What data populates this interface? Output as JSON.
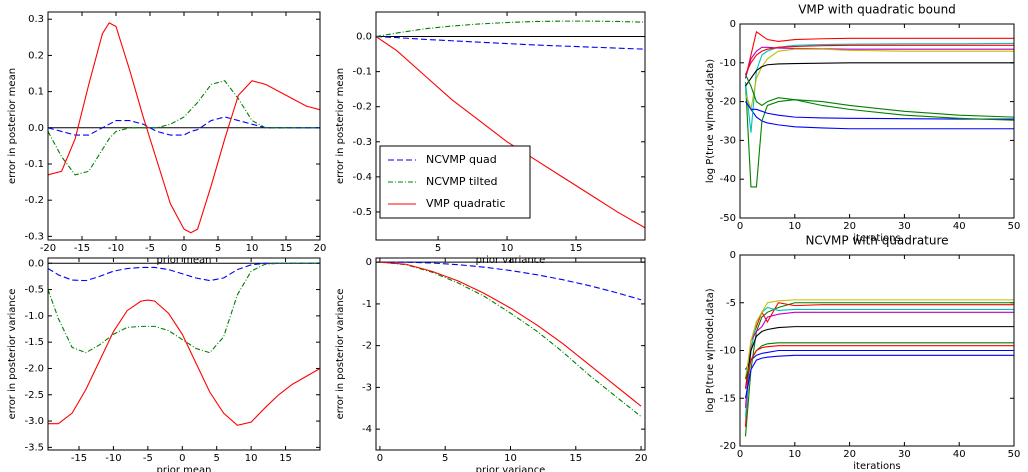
{
  "chart_data": [
    {
      "type": "line",
      "xlabel": "prior mean",
      "ylabel": "error in posterior mean",
      "x": [
        -20,
        -18,
        -16,
        -14,
        -12,
        -11,
        -10,
        -8,
        -6,
        -4,
        -2,
        0,
        1,
        2,
        4,
        6,
        8,
        10,
        12,
        14,
        16,
        18,
        20
      ],
      "series": [
        {
          "name": "NCVMP quad",
          "color": "#0000ff",
          "dash": "dashed",
          "values": [
            0,
            -0.01,
            -0.02,
            -0.02,
            0,
            0.01,
            0.02,
            0.02,
            0.01,
            -0.01,
            -0.02,
            -0.02,
            -0.01,
            -0.005,
            0.02,
            0.03,
            0.02,
            0.01,
            0,
            0,
            0,
            0,
            0
          ]
        },
        {
          "name": "NCVMP tilted",
          "color": "#008000",
          "dash": "dashdot",
          "values": [
            -0.01,
            -0.08,
            -0.13,
            -0.12,
            -0.06,
            -0.03,
            -0.01,
            0,
            0,
            0,
            0.01,
            0.03,
            0.05,
            0.07,
            0.12,
            0.13,
            0.08,
            0.02,
            0,
            0,
            0,
            0,
            0
          ]
        },
        {
          "name": "VMP quadratic",
          "color": "#ff0000",
          "dash": "solid",
          "values": [
            -0.13,
            -0.12,
            -0.03,
            0.12,
            0.26,
            0.29,
            0.28,
            0.16,
            0.03,
            -0.09,
            -0.21,
            -0.28,
            -0.29,
            -0.28,
            -0.16,
            -0.03,
            0.09,
            0.13,
            0.12,
            0.1,
            0.08,
            0.06,
            0.05
          ]
        }
      ],
      "xlim": [
        -20,
        20
      ],
      "ylim": [
        -0.31,
        0.32
      ],
      "xticks": [
        -20,
        -15,
        -10,
        -5,
        0,
        5,
        10,
        15,
        20
      ],
      "yticks": [
        -0.3,
        -0.2,
        -0.1,
        {
          "value": 0,
          "label": "0.0"
        },
        0.1,
        0.2,
        0.3
      ],
      "hline": 0
    },
    {
      "type": "line",
      "xlabel": "prior variance",
      "ylabel": "error in posterior mean",
      "x": [
        0.5,
        2,
        4,
        6,
        8,
        10,
        12,
        14,
        16,
        18,
        20
      ],
      "series": [
        {
          "name": "NCVMP quad",
          "color": "#0000ff",
          "dash": "dashed",
          "values": [
            0,
            -0.003,
            -0.008,
            -0.012,
            -0.016,
            -0.02,
            -0.024,
            -0.027,
            -0.03,
            -0.033,
            -0.036
          ]
        },
        {
          "name": "NCVMP tilted",
          "color": "#008000",
          "dash": "dashdot",
          "values": [
            0,
            0.01,
            0.022,
            0.03,
            0.036,
            0.04,
            0.043,
            0.044,
            0.044,
            0.043,
            0.041
          ]
        },
        {
          "name": "VMP quadratic",
          "color": "#ff0000",
          "dash": "solid",
          "values": [
            0,
            -0.04,
            -0.11,
            -0.18,
            -0.24,
            -0.3,
            -0.35,
            -0.4,
            -0.45,
            -0.5,
            -0.545
          ]
        }
      ],
      "xlim": [
        0.5,
        20
      ],
      "ylim": [
        -0.58,
        0.07
      ],
      "xticks": [
        5,
        10,
        15
      ],
      "yticks": [
        -0.5,
        -0.4,
        -0.3,
        -0.2,
        -0.1,
        {
          "value": 0,
          "label": "0.0"
        }
      ],
      "hline": 0,
      "legend": "center left"
    },
    {
      "type": "line",
      "xlabel": "prior mean",
      "ylabel": "error in posterior variance",
      "x": [
        -19.5,
        -18,
        -16,
        -14,
        -12,
        -10,
        -8,
        -6,
        -5,
        -4,
        -2,
        0,
        2,
        4,
        6,
        8,
        10,
        12,
        14,
        16,
        18,
        20
      ],
      "series": [
        {
          "name": "NCVMP quad",
          "color": "#0000ff",
          "dash": "dashed",
          "values": [
            -0.1,
            -0.22,
            -0.32,
            -0.33,
            -0.25,
            -0.15,
            -0.1,
            -0.08,
            -0.08,
            -0.08,
            -0.12,
            -0.2,
            -0.28,
            -0.33,
            -0.28,
            -0.12,
            -0.03,
            0,
            0,
            0,
            0,
            0
          ]
        },
        {
          "name": "NCVMP tilted",
          "color": "#008000",
          "dash": "dashdot",
          "values": [
            -0.5,
            -1.05,
            -1.6,
            -1.7,
            -1.55,
            -1.35,
            -1.22,
            -1.2,
            -1.2,
            -1.2,
            -1.28,
            -1.45,
            -1.62,
            -1.7,
            -1.4,
            -0.6,
            -0.15,
            -0.02,
            0,
            0,
            0,
            0
          ]
        },
        {
          "name": "VMP quadratic",
          "color": "#ff0000",
          "dash": "solid",
          "values": [
            -3.05,
            -3.05,
            -2.85,
            -2.4,
            -1.85,
            -1.3,
            -0.9,
            -0.72,
            -0.7,
            -0.72,
            -0.95,
            -1.35,
            -1.9,
            -2.45,
            -2.85,
            -3.08,
            -3.02,
            -2.75,
            -2.5,
            -2.3,
            -2.15,
            -2
          ]
        }
      ],
      "xlim": [
        -19.5,
        20
      ],
      "ylim": [
        -3.55,
        0.1
      ],
      "xticks": [
        -15,
        -10,
        -5,
        0,
        5,
        10,
        15
      ],
      "yticks": [
        -3.5,
        {
          "value": -3,
          "label": "-3.0"
        },
        -2.5,
        {
          "value": -2,
          "label": "-2.0"
        },
        -1.5,
        {
          "value": -1,
          "label": "-1.0"
        },
        -0.5,
        {
          "value": 0,
          "label": "0.0"
        }
      ],
      "hline": 0
    },
    {
      "type": "line",
      "xlabel": "prior variance",
      "ylabel": "error in posterior variance",
      "x": [
        0,
        2,
        4,
        6,
        8,
        10,
        12,
        14,
        16,
        18,
        20
      ],
      "series": [
        {
          "name": "NCVMP quad",
          "color": "#0000ff",
          "dash": "dashed",
          "values": [
            0,
            0,
            -0.02,
            -0.06,
            -0.12,
            -0.2,
            -0.3,
            -0.42,
            -0.56,
            -0.72,
            -0.9
          ]
        },
        {
          "name": "NCVMP tilted",
          "color": "#008000",
          "dash": "dashdot",
          "values": [
            0,
            -0.06,
            -0.24,
            -0.5,
            -0.82,
            -1.22,
            -1.65,
            -2.15,
            -2.7,
            -3.2,
            -3.7
          ]
        },
        {
          "name": "VMP quadratic",
          "color": "#ff0000",
          "dash": "solid",
          "values": [
            0,
            -0.05,
            -0.22,
            -0.45,
            -0.75,
            -1.1,
            -1.5,
            -1.95,
            -2.45,
            -2.95,
            -3.45
          ]
        }
      ],
      "xlim": [
        -0.3,
        20.3
      ],
      "ylim": [
        -4.5,
        0.1
      ],
      "xticks": [
        0,
        5,
        10,
        15,
        20
      ],
      "yticks": [
        -4,
        -3,
        -2,
        -1,
        0
      ],
      "hline": 0
    },
    {
      "type": "line",
      "title": "VMP with quadratic bound",
      "xlabel": "iterations",
      "ylabel": "log P(true w|model,data)",
      "x": [
        1,
        2,
        3,
        4,
        5,
        7,
        10,
        15,
        20,
        30,
        40,
        50
      ],
      "series": [
        {
          "color": "#0000ff",
          "dash": "solid",
          "values": [
            -18,
            -22,
            -24,
            -25,
            -25.5,
            -26,
            -26.5,
            -26.8,
            -27,
            -27,
            -27,
            -27
          ]
        },
        {
          "color": "#008000",
          "dash": "solid",
          "values": [
            -15,
            -42,
            -42,
            -25,
            -21,
            -20,
            -19.5,
            -20,
            -21,
            -22.5,
            -23.5,
            -24
          ]
        },
        {
          "color": "#ff0000",
          "dash": "solid",
          "values": [
            -14,
            -8,
            -2,
            -3,
            -4,
            -4.5,
            -4,
            -3.8,
            -3.7,
            -3.7,
            -3.7,
            -3.7
          ]
        },
        {
          "color": "#00bfbf",
          "dash": "solid",
          "values": [
            -15,
            -28,
            -12,
            -8,
            -7,
            -6,
            -5.5,
            -5.3,
            -5.2,
            -5.1,
            -5.1,
            -5
          ]
        },
        {
          "color": "#bf00bf",
          "dash": "solid",
          "values": [
            -14,
            -9,
            -7,
            -6,
            -6,
            -6.2,
            -6.3,
            -6.4,
            -6.5,
            -6.5,
            -6.5,
            -6.5
          ]
        },
        {
          "color": "#bfbf00",
          "dash": "solid",
          "values": [
            -18,
            -22,
            -14,
            -11,
            -9,
            -7,
            -6.5,
            -6.5,
            -6.8,
            -7,
            -7,
            -7
          ]
        },
        {
          "color": "#000000",
          "dash": "solid",
          "values": [
            -16,
            -14,
            -12,
            -11,
            -10.5,
            -10.3,
            -10.2,
            -10.1,
            -10,
            -10,
            -10,
            -10
          ]
        },
        {
          "color": "#0000ff",
          "dash": "solid",
          "values": [
            -20,
            -22,
            -22,
            -22.5,
            -23,
            -23.5,
            -24,
            -24.2,
            -24.3,
            -24.4,
            -24.5,
            -24.5
          ]
        },
        {
          "color": "#008000",
          "dash": "solid",
          "values": [
            -13,
            -16,
            -20,
            -21,
            -20,
            -19,
            -19.5,
            -21,
            -22,
            -23.5,
            -24.3,
            -24.8
          ]
        },
        {
          "color": "#ff0000",
          "dash": "solid",
          "values": [
            -13,
            -10,
            -8,
            -7,
            -6.5,
            -6,
            -5.8,
            -5.6,
            -5.5,
            -5.5,
            -5.5,
            -5.5
          ]
        }
      ],
      "xlim": [
        0,
        50
      ],
      "ylim": [
        -50,
        0
      ],
      "xticks": [
        0,
        10,
        20,
        30,
        40,
        50
      ],
      "yticks": [
        -50,
        -40,
        -30,
        -20,
        -10,
        0
      ]
    },
    {
      "type": "line",
      "title": "NCVMP with quadrature",
      "xlabel": "iterations",
      "ylabel": "log P(true w|model,data)",
      "x": [
        1,
        2,
        3,
        4,
        5,
        7,
        10,
        15,
        20,
        30,
        40,
        50
      ],
      "series": [
        {
          "color": "#0000ff",
          "dash": "solid",
          "values": [
            -12,
            -11,
            -10.5,
            -10.3,
            -10.2,
            -10,
            -10,
            -10,
            -10,
            -10,
            -10,
            -10
          ]
        },
        {
          "color": "#008000",
          "dash": "solid",
          "values": [
            -19,
            -12,
            -8,
            -6.5,
            -6,
            -5.5,
            -5,
            -5,
            -5,
            -5,
            -5,
            -5
          ]
        },
        {
          "color": "#ff0000",
          "dash": "solid",
          "values": [
            -18,
            -9,
            -7.5,
            -6,
            -7,
            -5,
            -5.3,
            -5.2,
            -5.2,
            -5.2,
            -5.2,
            -5.2
          ]
        },
        {
          "color": "#00bfbf",
          "dash": "solid",
          "values": [
            -17,
            -10,
            -7,
            -6,
            -5.5,
            -5.8,
            -5.7,
            -5.7,
            -5.7,
            -5.7,
            -5.7,
            -5.7
          ]
        },
        {
          "color": "#bf00bf",
          "dash": "solid",
          "values": [
            -16,
            -9,
            -8,
            -7.5,
            -6.5,
            -6.2,
            -6,
            -6,
            -6,
            -6,
            -6,
            -6
          ]
        },
        {
          "color": "#bfbf00",
          "dash": "solid",
          "values": [
            -13,
            -9,
            -7,
            -6,
            -5,
            -4.8,
            -4.7,
            -4.7,
            -4.7,
            -4.7,
            -4.7,
            -4.7
          ]
        },
        {
          "color": "#000000",
          "dash": "solid",
          "values": [
            -14,
            -10,
            -8.5,
            -8,
            -7.8,
            -7.6,
            -7.5,
            -7.5,
            -7.5,
            -7.5,
            -7.5,
            -7.5
          ]
        },
        {
          "color": "#0000ff",
          "dash": "solid",
          "values": [
            -15,
            -12,
            -11,
            -10.8,
            -10.7,
            -10.6,
            -10.5,
            -10.5,
            -10.5,
            -10.5,
            -10.5,
            -10.5
          ]
        },
        {
          "color": "#008000",
          "dash": "solid",
          "values": [
            -13,
            -11,
            -10,
            -9.5,
            -9.3,
            -9.2,
            -9.2,
            -9.2,
            -9.2,
            -9.2,
            -9.2,
            -9.2
          ]
        },
        {
          "color": "#ff0000",
          "dash": "solid",
          "values": [
            -14,
            -11,
            -10,
            -9.7,
            -9.6,
            -9.5,
            -9.5,
            -9.5,
            -9.5,
            -9.5,
            -9.5,
            -9.5
          ]
        }
      ],
      "xlim": [
        0,
        50
      ],
      "ylim": [
        -20,
        0
      ],
      "xticks": [
        0,
        10,
        20,
        30,
        40,
        50
      ],
      "yticks": [
        -20,
        -15,
        -10,
        -5,
        0
      ]
    }
  ]
}
